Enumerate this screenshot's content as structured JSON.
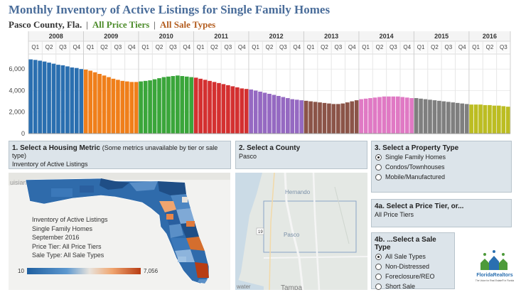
{
  "title": "Monthly Inventory of Active Listings for Single Family Homes",
  "subtitle": {
    "county": "Pasco County, Fla.",
    "sep": "|",
    "price_tier": "All Price Tiers",
    "sale_type": "All Sale Types"
  },
  "colors": {
    "title": "#4a6d9a",
    "price_tier": "#4d8c2b",
    "sale_type": "#b35c1e",
    "panel_bg": "#dce4ea"
  },
  "chart_data": {
    "type": "bar",
    "years": [
      {
        "year": "2008",
        "color": "#2a6fb0",
        "quarters": [
          "Q1",
          "Q2",
          "Q3",
          "Q4"
        ]
      },
      {
        "year": "2009",
        "color": "#f07f1a",
        "quarters": [
          "Q1",
          "Q2",
          "Q3",
          "Q4"
        ]
      },
      {
        "year": "2010",
        "color": "#3aa63a",
        "quarters": [
          "Q1",
          "Q2",
          "Q3",
          "Q4"
        ]
      },
      {
        "year": "2011",
        "color": "#d43030",
        "quarters": [
          "Q1",
          "Q2",
          "Q3",
          "Q4"
        ]
      },
      {
        "year": "2012",
        "color": "#9569c2",
        "quarters": [
          "Q1",
          "Q2",
          "Q3",
          "Q4"
        ]
      },
      {
        "year": "2013",
        "color": "#8b5448",
        "quarters": [
          "Q1",
          "Q2",
          "Q3",
          "Q4"
        ]
      },
      {
        "year": "2014",
        "color": "#e079c4",
        "quarters": [
          "Q1",
          "Q2",
          "Q3",
          "Q4"
        ]
      },
      {
        "year": "2015",
        "color": "#7f7f7f",
        "quarters": [
          "Q1",
          "Q2",
          "Q3",
          "Q4"
        ]
      },
      {
        "year": "2016",
        "color": "#bcbd22",
        "quarters": [
          "Q1",
          "Q2",
          "Q3"
        ]
      }
    ],
    "values": [
      6900,
      6850,
      6780,
      6700,
      6600,
      6500,
      6400,
      6350,
      6250,
      6150,
      6100,
      6000,
      5950,
      5850,
      5700,
      5550,
      5400,
      5250,
      5100,
      5000,
      4900,
      4850,
      4800,
      4800,
      4850,
      4900,
      4950,
      5050,
      5150,
      5250,
      5300,
      5350,
      5400,
      5350,
      5300,
      5250,
      5200,
      5100,
      5000,
      4900,
      4800,
      4700,
      4600,
      4500,
      4400,
      4300,
      4200,
      4150,
      4100,
      4000,
      3900,
      3800,
      3700,
      3600,
      3500,
      3400,
      3300,
      3200,
      3150,
      3100,
      3050,
      3000,
      2950,
      2900,
      2850,
      2800,
      2750,
      2750,
      2800,
      2900,
      3000,
      3100,
      3200,
      3250,
      3300,
      3350,
      3400,
      3450,
      3450,
      3450,
      3450,
      3400,
      3350,
      3300,
      3300,
      3250,
      3200,
      3150,
      3100,
      3050,
      3000,
      2950,
      2900,
      2850,
      2800,
      2750,
      2700,
      2700,
      2700,
      2650,
      2650,
      2600,
      2600,
      2550,
      2500
    ],
    "y_ticks": [
      "0",
      "2,000",
      "4,000",
      "6,000"
    ],
    "ylim": [
      0,
      7400
    ]
  },
  "panels": {
    "metric": {
      "label": "1. Select a Housing Metric",
      "note": "(Some metrics unavailable by tier or sale type)",
      "value": "Inventory of Active Listings"
    },
    "county": {
      "label": "2. Select a County",
      "value": "Pasco"
    },
    "property": {
      "label": "3. Select a Property Type",
      "options": [
        "Single Family Homes",
        "Condos/Townhouses",
        "Mobile/Manufactured"
      ],
      "selected": 0
    },
    "tier": {
      "label": "4a. Select a Price Tier, or...",
      "value": "All Price Tiers"
    },
    "sale": {
      "label": "4b. ...Select a Sale Type",
      "options": [
        "All Sale Types",
        "Non-Distressed",
        "Foreclosure/REO",
        "Short Sale"
      ],
      "selected": 0
    }
  },
  "map": {
    "info": [
      "Inventory of Active Listings",
      "Single Family Homes",
      "September 2016",
      "Price Tier: All Price Tiers",
      "Sale Type: All Sale Types"
    ],
    "legend_min": "10",
    "legend_max": "7,056",
    "labels": {
      "louisiana": "uisiana"
    }
  },
  "pasco_map": {
    "labels": {
      "hernando": "Hernando",
      "pasco": "Pasco",
      "tampa": "Tampa",
      "bwater": "water",
      "route": "19"
    }
  },
  "logo": {
    "text": "FloridaRealtors",
    "tagline": "The Voice for Real Estate® in Florida"
  }
}
